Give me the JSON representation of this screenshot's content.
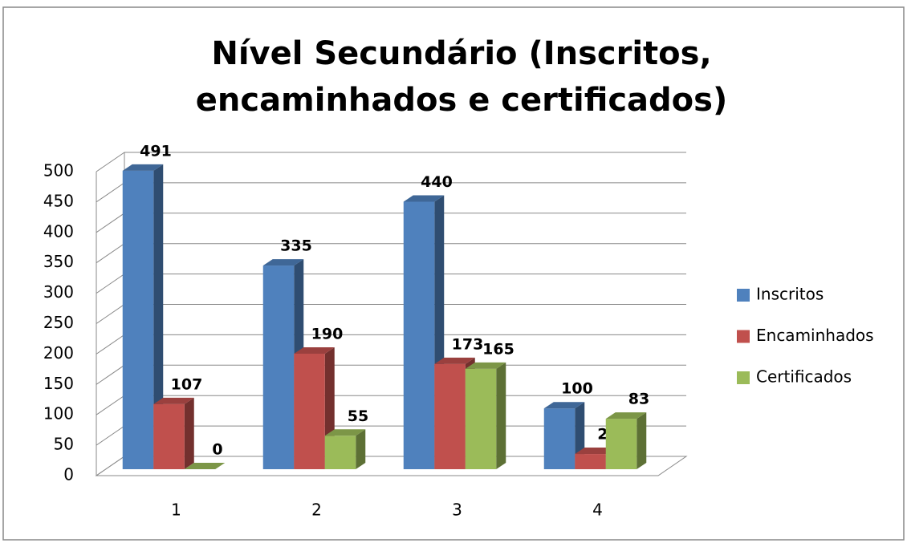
{
  "chart_data": {
    "type": "bar3d",
    "title": "Nível Secundário (Inscritos, encaminhados e certificados)",
    "categories": [
      "1",
      "2",
      "3",
      "4"
    ],
    "series": [
      {
        "name": "Inscritos",
        "color": "#4f81bd",
        "values": [
          491,
          335,
          440,
          100
        ]
      },
      {
        "name": "Encaminhados",
        "color": "#c0504d",
        "values": [
          107,
          190,
          173,
          25
        ]
      },
      {
        "name": "Certificados",
        "color": "#9bbb59",
        "values": [
          0,
          55,
          165,
          83
        ]
      }
    ],
    "ylim": [
      0,
      500
    ],
    "yticks": [
      0,
      50,
      100,
      150,
      200,
      250,
      300,
      350,
      400,
      450,
      500
    ],
    "grid": true,
    "legend": "right"
  }
}
